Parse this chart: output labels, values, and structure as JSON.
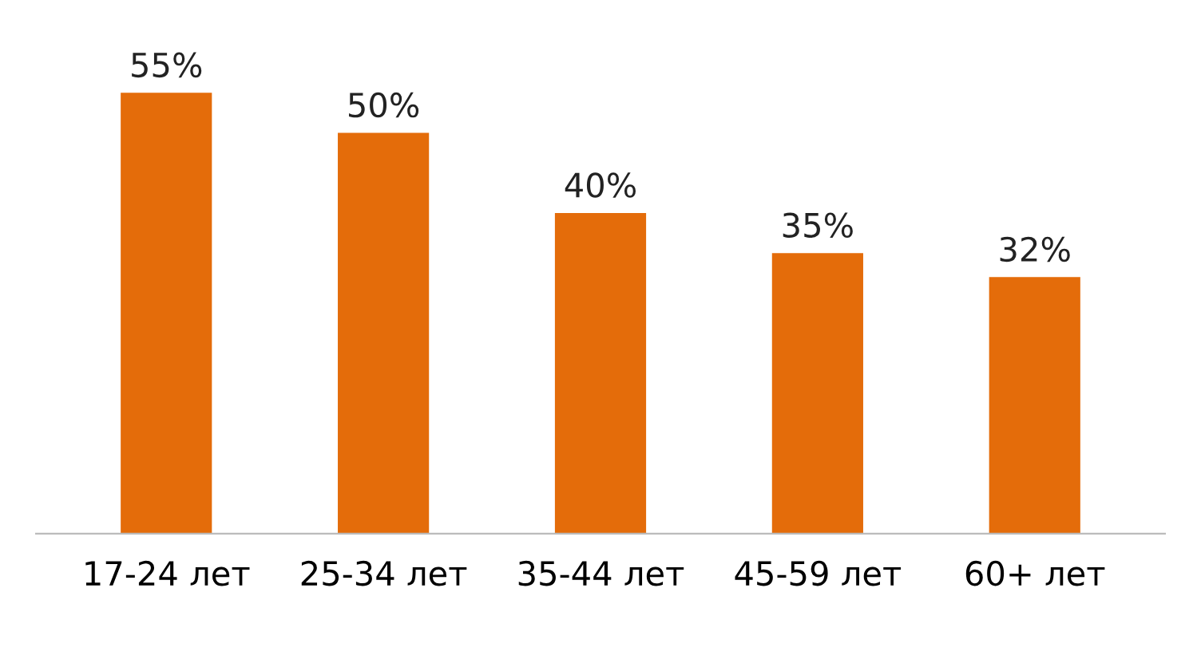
{
  "chart_data": {
    "type": "bar",
    "categories": [
      "17-24 лет",
      "25-34 лет",
      "35-44 лет",
      "45-59 лет",
      "60+ лет"
    ],
    "values": [
      55,
      50,
      40,
      35,
      32
    ],
    "value_labels": [
      "55%",
      "50%",
      "40%",
      "35%",
      "32%"
    ],
    "color": "#e46c0a",
    "grid": false,
    "legend": false
  }
}
